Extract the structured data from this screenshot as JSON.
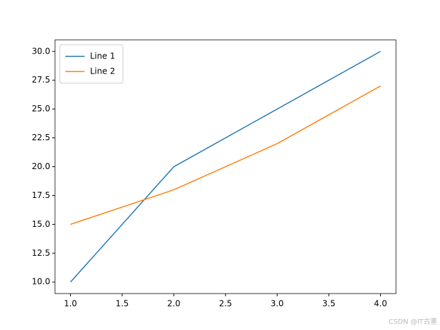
{
  "chart_data": {
    "type": "line",
    "x": [
      1,
      2,
      3,
      4
    ],
    "series": [
      {
        "name": "Line 1",
        "color": "#1f77b4",
        "values": [
          10,
          20,
          25,
          30
        ]
      },
      {
        "name": "Line 2",
        "color": "#ff7f0e",
        "values": [
          15,
          18,
          22,
          27
        ]
      }
    ],
    "xlim": [
      0.85,
      4.15
    ],
    "ylim": [
      9,
      31
    ],
    "xticks": [
      {
        "value": 1,
        "label": "1.0"
      },
      {
        "value": 1.5,
        "label": "1.5"
      },
      {
        "value": 2,
        "label": "2.0"
      },
      {
        "value": 2.5,
        "label": "2.5"
      },
      {
        "value": 3,
        "label": "3.0"
      },
      {
        "value": 3.5,
        "label": "3.5"
      },
      {
        "value": 4,
        "label": "4.0"
      }
    ],
    "yticks": [
      {
        "value": 10,
        "label": "10.0"
      },
      {
        "value": 12.5,
        "label": "12.5"
      },
      {
        "value": 15,
        "label": "15.0"
      },
      {
        "value": 17.5,
        "label": "17.5"
      },
      {
        "value": 20,
        "label": "20.0"
      },
      {
        "value": 22.5,
        "label": "22.5"
      },
      {
        "value": 25,
        "label": "25.0"
      },
      {
        "value": 27.5,
        "label": "27.5"
      },
      {
        "value": 30,
        "label": "30.0"
      }
    ],
    "grid": false,
    "legend": "upper-left",
    "watermark": "CSDN @IT古董"
  }
}
